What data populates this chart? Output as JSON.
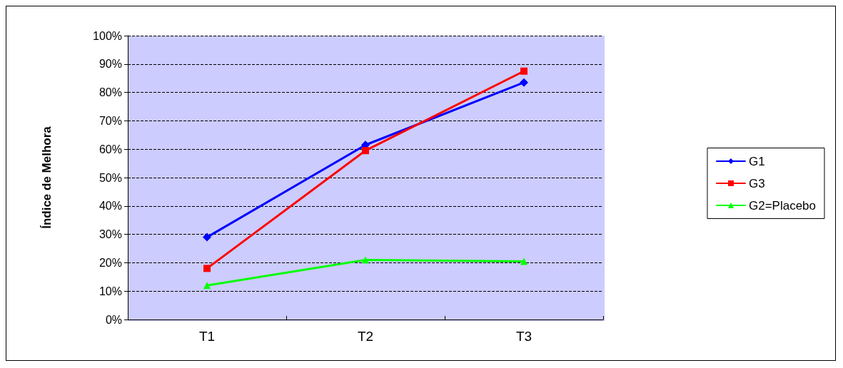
{
  "chart_data": {
    "type": "line",
    "ylabel": "Índice de Melhora",
    "categories": [
      "T1",
      "T2",
      "T3"
    ],
    "series": [
      {
        "name": "G1",
        "color": "#0000ff",
        "marker": "diamond",
        "values": [
          29,
          61.5,
          83.5
        ]
      },
      {
        "name": "G3",
        "color": "#ff0000",
        "marker": "square",
        "values": [
          18,
          59.5,
          87.5
        ]
      },
      {
        "name": "G2=Placebo",
        "color": "#00ff00",
        "marker": "triangle",
        "values": [
          12,
          21,
          20.5
        ]
      }
    ],
    "ylim": [
      0,
      100
    ],
    "yticks": [
      {
        "value": 0,
        "label": "0%"
      },
      {
        "value": 10,
        "label": "10%"
      },
      {
        "value": 20,
        "label": "20%"
      },
      {
        "value": 30,
        "label": "30%"
      },
      {
        "value": 40,
        "label": "40%"
      },
      {
        "value": 50,
        "label": "50%"
      },
      {
        "value": 60,
        "label": "60%"
      },
      {
        "value": 70,
        "label": "70%"
      },
      {
        "value": 80,
        "label": "80%"
      },
      {
        "value": 90,
        "label": "90%"
      },
      {
        "value": 100,
        "label": "100%"
      }
    ],
    "grid": "y",
    "legend": "right",
    "line_style": "solid"
  }
}
